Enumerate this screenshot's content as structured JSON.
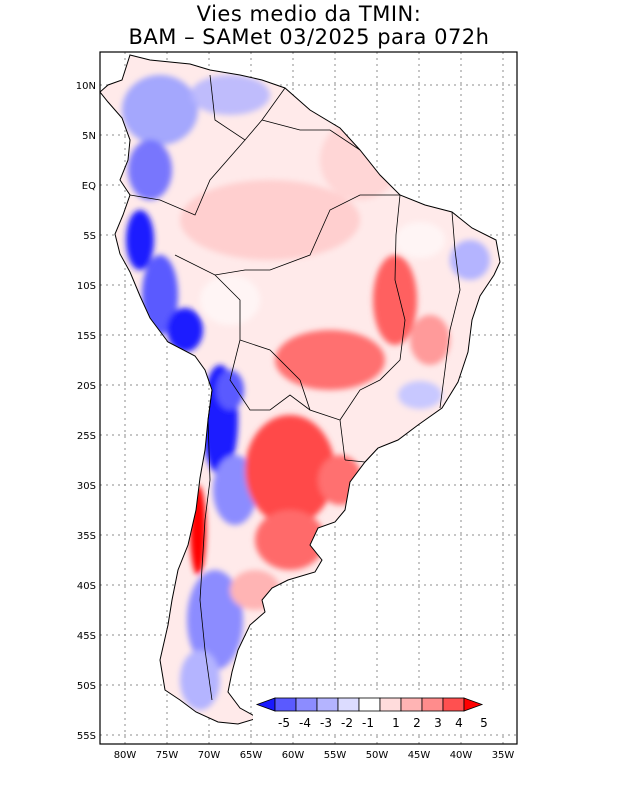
{
  "title": {
    "line1": "Vies medio da TMIN:",
    "line2": "BAM – SAMet 03/2025  para 072h"
  },
  "map": {
    "lat_labels": [
      "10N",
      "5N",
      "EQ",
      "5S",
      "10S",
      "15S",
      "20S",
      "25S",
      "30S",
      "35S",
      "40S",
      "45S",
      "50S",
      "55S"
    ],
    "lon_labels": [
      "80W",
      "75W",
      "70W",
      "65W",
      "60W",
      "55W",
      "50W",
      "45W",
      "40W",
      "35W"
    ],
    "region": "South America"
  },
  "colorbar": {
    "labels": [
      "-5",
      "-4",
      "-3",
      "-2",
      "-1",
      "1",
      "2",
      "3",
      "4",
      "5"
    ],
    "colors": [
      "#1a1aff",
      "#5a5aff",
      "#8c8cff",
      "#b4b4ff",
      "#dcdcff",
      "#ffffff",
      "#ffdcdc",
      "#ffb4b4",
      "#ff8c8c",
      "#ff5050",
      "#ff0000"
    ]
  }
}
